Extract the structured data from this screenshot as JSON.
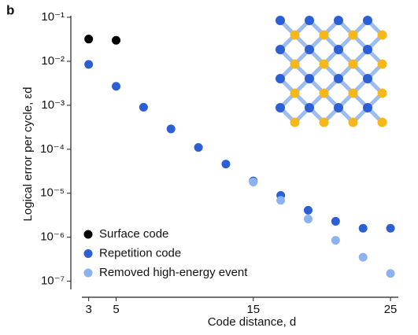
{
  "chart_data": {
    "type": "scatter",
    "panel_label": "b",
    "x_label": "Code distance, d",
    "y_label": "Logical error per cycle, εd",
    "log_y": true,
    "xlim": [
      1.7,
      25.8
    ],
    "xticks": [
      3,
      5,
      15,
      25
    ],
    "ylim": [
      6e-08,
      0.1
    ],
    "yticks": [
      {
        "value": 0.1,
        "label": "10⁻¹"
      },
      {
        "value": 0.01,
        "label": "10⁻²"
      },
      {
        "value": 0.001,
        "label": "10⁻³"
      },
      {
        "value": 0.0001,
        "label": "10⁻⁴"
      },
      {
        "value": 1e-05,
        "label": "10⁻⁵"
      },
      {
        "value": 1e-06,
        "label": "10⁻⁶"
      },
      {
        "value": 1e-07,
        "label": "10⁻⁷"
      }
    ],
    "legend": "lower-left",
    "series": [
      {
        "name": "Surface code",
        "color": "#000000",
        "x": [
          3,
          5
        ],
        "values": [
          0.032,
          0.03
        ]
      },
      {
        "name": "Repetition code",
        "color": "#2b5fd6",
        "x": [
          3,
          5,
          7,
          9,
          11,
          13,
          15,
          17,
          19,
          21,
          23,
          25
        ],
        "values": [
          0.0085,
          0.0027,
          0.0009,
          0.00029,
          0.00011,
          4.6e-05,
          1.9e-05,
          8.9e-06,
          4.1e-06,
          2.3e-06,
          1.6e-06,
          1.6e-06
        ]
      },
      {
        "name": "Removed high-energy event",
        "color": "#8db2f2",
        "x": [
          15,
          17,
          19,
          21,
          23,
          25
        ],
        "values": [
          1.8e-05,
          6.9e-06,
          2.6e-06,
          8.5e-07,
          3.5e-07,
          1.5e-07
        ]
      }
    ]
  }
}
